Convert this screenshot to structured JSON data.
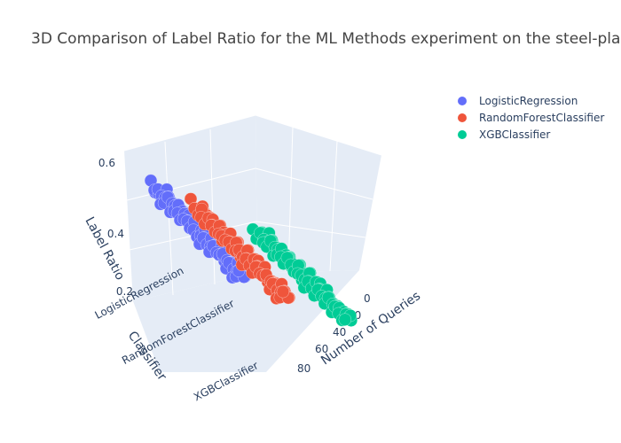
{
  "chart_data": {
    "type": "scatter",
    "title": "3D Comparison of Label Ratio for the ML Methods experiment on the steel-pla",
    "zlabel": "Label Ratio",
    "ylabel": "Classifier",
    "xlabel": "Number of Queries",
    "z_ticks": [
      "0.2",
      "0.4",
      "0.6"
    ],
    "y_ticks": [
      "LogisticRegression",
      "RandomForestClassifier",
      "XGBClassifier"
    ],
    "x_ticks": [
      "0",
      "20",
      "40",
      "60",
      "80"
    ],
    "zlim": [
      0.2,
      0.62
    ],
    "xlim": [
      0,
      100
    ],
    "series": [
      {
        "name": "LogisticRegression",
        "color": "#636efa",
        "x": [
          0,
          1,
          2,
          3,
          4,
          5,
          6,
          7,
          8,
          9,
          10,
          11,
          12,
          13,
          14,
          15,
          16,
          17,
          18,
          19,
          20,
          21,
          22,
          23,
          24,
          25,
          26,
          27,
          28,
          29,
          30,
          31,
          32,
          33,
          34,
          35,
          36,
          37,
          38,
          39,
          40,
          41,
          42,
          43,
          44,
          45,
          46,
          47,
          48,
          49,
          50,
          51,
          52,
          53,
          54,
          55,
          56,
          57,
          58,
          59,
          60,
          61,
          62,
          63,
          64,
          65,
          66,
          67,
          68,
          69,
          70,
          71,
          72,
          73,
          74,
          75,
          76,
          77,
          78,
          79,
          80,
          81,
          82,
          83,
          84,
          85,
          86,
          87,
          88,
          89,
          90,
          91,
          92,
          93,
          94,
          95,
          96,
          97,
          98,
          99
        ],
        "z": [
          0.62,
          0.6,
          0.59,
          0.6,
          0.58,
          0.57,
          0.59,
          0.56,
          0.58,
          0.55,
          0.57,
          0.54,
          0.56,
          0.55,
          0.53,
          0.55,
          0.52,
          0.54,
          0.51,
          0.53,
          0.5,
          0.52,
          0.49,
          0.51,
          0.5,
          0.48,
          0.5,
          0.47,
          0.49,
          0.46,
          0.48,
          0.45,
          0.47,
          0.44,
          0.46,
          0.45,
          0.43,
          0.45,
          0.42,
          0.44,
          0.41,
          0.43,
          0.4,
          0.42,
          0.39,
          0.41,
          0.38,
          0.4,
          0.37,
          0.39,
          0.36,
          0.38,
          0.37,
          0.35,
          0.37,
          0.34,
          0.36,
          0.33,
          0.35,
          0.32,
          0.34,
          0.31,
          0.33,
          0.3,
          0.32,
          0.31,
          0.29,
          0.31,
          0.28,
          0.3,
          0.27,
          0.29,
          0.26,
          0.28,
          0.25,
          0.27,
          0.24,
          0.26,
          0.25,
          0.23,
          0.25,
          0.22,
          0.24,
          0.21,
          0.23,
          0.2,
          0.22,
          0.19,
          0.21,
          0.18,
          0.2,
          0.17,
          0.19,
          0.18,
          0.16,
          0.18,
          0.15,
          0.17,
          0.14,
          0.16
        ]
      },
      {
        "name": "RandomForestClassifier",
        "color": "#ef553b",
        "x": [
          0,
          1,
          2,
          3,
          4,
          5,
          6,
          7,
          8,
          9,
          10,
          11,
          12,
          13,
          14,
          15,
          16,
          17,
          18,
          19,
          20,
          21,
          22,
          23,
          24,
          25,
          26,
          27,
          28,
          29,
          30,
          31,
          32,
          33,
          34,
          35,
          36,
          37,
          38,
          39,
          40,
          41,
          42,
          43,
          44,
          45,
          46,
          47,
          48,
          49,
          50,
          51,
          52,
          53,
          54,
          55,
          56,
          57,
          58,
          59,
          60,
          61,
          62,
          63,
          64,
          65,
          66,
          67,
          68,
          69,
          70,
          71,
          72,
          73,
          74,
          75,
          76,
          77,
          78,
          79,
          80,
          81,
          82,
          83,
          84,
          85,
          86,
          87,
          88,
          89,
          90,
          91,
          92,
          93,
          94,
          95,
          96,
          97,
          98,
          99
        ],
        "z": [
          0.6,
          0.59,
          0.57,
          0.58,
          0.55,
          0.56,
          0.54,
          0.57,
          0.53,
          0.55,
          0.52,
          0.54,
          0.51,
          0.53,
          0.5,
          0.52,
          0.49,
          0.51,
          0.5,
          0.48,
          0.5,
          0.47,
          0.49,
          0.46,
          0.48,
          0.45,
          0.47,
          0.44,
          0.46,
          0.43,
          0.45,
          0.42,
          0.44,
          0.43,
          0.41,
          0.43,
          0.4,
          0.42,
          0.39,
          0.41,
          0.38,
          0.4,
          0.37,
          0.39,
          0.36,
          0.38,
          0.35,
          0.37,
          0.36,
          0.34,
          0.36,
          0.33,
          0.35,
          0.32,
          0.34,
          0.31,
          0.33,
          0.3,
          0.32,
          0.29,
          0.31,
          0.28,
          0.3,
          0.29,
          0.27,
          0.29,
          0.26,
          0.28,
          0.25,
          0.27,
          0.24,
          0.26,
          0.23,
          0.25,
          0.22,
          0.24,
          0.21,
          0.23,
          0.22,
          0.2,
          0.22,
          0.19,
          0.21,
          0.18,
          0.2,
          0.17,
          0.19,
          0.16,
          0.18,
          0.15,
          0.17,
          0.14,
          0.16,
          0.15,
          0.13,
          0.15,
          0.12,
          0.14,
          0.11,
          0.13
        ]
      },
      {
        "name": "XGBClassifier",
        "color": "#00cc96",
        "x": [
          0,
          1,
          2,
          3,
          4,
          5,
          6,
          7,
          8,
          9,
          10,
          11,
          12,
          13,
          14,
          15,
          16,
          17,
          18,
          19,
          20,
          21,
          22,
          23,
          24,
          25,
          26,
          27,
          28,
          29,
          30,
          31,
          32,
          33,
          34,
          35,
          36,
          37,
          38,
          39,
          40,
          41,
          42,
          43,
          44,
          45,
          46,
          47,
          48,
          49,
          50,
          51,
          52,
          53,
          54,
          55,
          56,
          57,
          58,
          59,
          60,
          61,
          62,
          63,
          64,
          65,
          66,
          67,
          68,
          69,
          70,
          71,
          72,
          73,
          74,
          75,
          76,
          77,
          78,
          79,
          80,
          81,
          82,
          83,
          84,
          85,
          86,
          87,
          88,
          89,
          90,
          91,
          92,
          93,
          94,
          95,
          96,
          97,
          98,
          99
        ],
        "z": [
          0.55,
          0.54,
          0.56,
          0.53,
          0.55,
          0.52,
          0.54,
          0.51,
          0.53,
          0.5,
          0.52,
          0.51,
          0.49,
          0.51,
          0.48,
          0.5,
          0.47,
          0.49,
          0.46,
          0.48,
          0.45,
          0.47,
          0.44,
          0.46,
          0.45,
          0.43,
          0.45,
          0.42,
          0.44,
          0.41,
          0.43,
          0.4,
          0.42,
          0.39,
          0.41,
          0.38,
          0.4,
          0.39,
          0.37,
          0.39,
          0.36,
          0.38,
          0.35,
          0.37,
          0.34,
          0.36,
          0.33,
          0.35,
          0.32,
          0.34,
          0.33,
          0.31,
          0.33,
          0.3,
          0.32,
          0.29,
          0.31,
          0.28,
          0.3,
          0.27,
          0.29,
          0.26,
          0.28,
          0.27,
          0.25,
          0.27,
          0.24,
          0.26,
          0.23,
          0.25,
          0.22,
          0.24,
          0.21,
          0.23,
          0.2,
          0.22,
          0.21,
          0.19,
          0.21,
          0.18,
          0.2,
          0.17,
          0.19,
          0.16,
          0.18,
          0.15,
          0.17,
          0.14,
          0.16,
          0.15,
          0.13,
          0.15,
          0.12,
          0.14,
          0.11,
          0.13,
          0.1,
          0.12,
          0.11,
          0.09
        ]
      }
    ],
    "legend": {
      "placement": "top-right"
    },
    "grid": true
  }
}
